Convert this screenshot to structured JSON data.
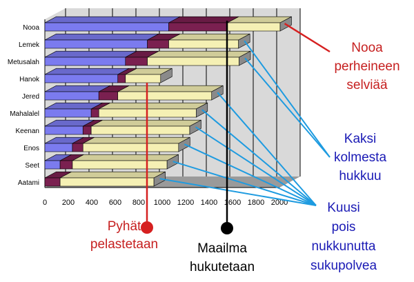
{
  "chart_data": {
    "type": "bar",
    "orientation": "horizontal",
    "stacked": true,
    "three_d": true,
    "grid": true,
    "categories": [
      "Aatami",
      "Seet",
      "Enos",
      "Keenan",
      "Mahalalel",
      "Jered",
      "Hanok",
      "Metusalah",
      "Lemek",
      "Nooa"
    ],
    "xlim": [
      0,
      2000
    ],
    "xticks": [
      0,
      200,
      400,
      600,
      800,
      1000,
      1200,
      1400,
      1600,
      1800,
      2000
    ],
    "series": [
      {
        "color": "#7b7bef",
        "values": [
          0,
          130,
          235,
          325,
          395,
          460,
          622,
          687,
          874,
          1056
        ]
      },
      {
        "color": "#7a2050",
        "values": [
          130,
          105,
          90,
          70,
          65,
          162,
          65,
          187,
          182,
          500
        ]
      },
      {
        "color": "#f5f0b4",
        "values": [
          800,
          807,
          815,
          840,
          830,
          800,
          300,
          782,
          595,
          450
        ]
      }
    ],
    "colors": {
      "grid": "#000000",
      "plot_bg": "#d9d9d9",
      "red_line": "#d62020",
      "blue_line": "#1e9be0",
      "black_line": "#000000"
    }
  },
  "annotations": {
    "noah": {
      "lines": [
        "Nooa",
        "perheineen",
        "selviää"
      ],
      "color": "#c62020"
    },
    "two_of_three": {
      "lines": [
        "Kaksi",
        "kolmesta",
        "hukkuu"
      ],
      "color": "#1a1ab5"
    },
    "six_generations": {
      "lines": [
        "Kuusi",
        "pois",
        "nukkunutta",
        "sukupolvea"
      ],
      "color": "#1a1ab5"
    },
    "saints": {
      "lines": [
        "Pyhät",
        "pelastetaan"
      ],
      "color": "#c62020"
    },
    "world": {
      "lines": [
        "Maailma",
        "hukutetaan"
      ],
      "color": "#000000"
    }
  }
}
